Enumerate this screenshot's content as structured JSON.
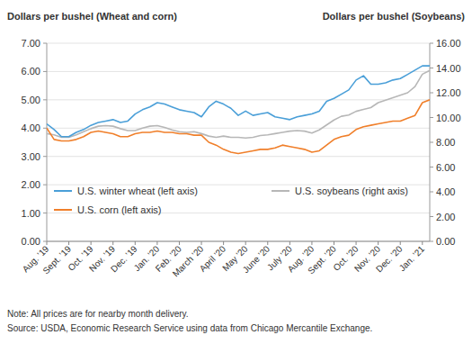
{
  "chart_data": {
    "type": "line",
    "y_label": "Dollars per bushel (Wheat and corn)",
    "y2_label": "Dollars per bushel (Soybeans)",
    "note": "Note: All prices are for nearby month delivery.",
    "source": "Source: USDA, Economic Research Service using data from Chicago Mercantile Exchange.",
    "categories": [
      "Aug. ’19",
      null,
      null,
      "Sept. ’19",
      null,
      null,
      "Oct. ’19",
      null,
      null,
      "Nov. ’19",
      null,
      null,
      "Dec. ’19",
      null,
      null,
      "Jan. ’20",
      null,
      null,
      "Feb. ’20",
      null,
      null,
      "March ’20",
      null,
      null,
      "April ’20",
      null,
      null,
      "May ’20",
      null,
      null,
      "June ’20",
      null,
      null,
      "July ’20",
      null,
      null,
      "Aug. ’20",
      null,
      null,
      "Sept. ’20",
      null,
      null,
      "Oct. ’20",
      null,
      null,
      "Nov. ’20",
      null,
      null,
      "Dec. ’20",
      null,
      null,
      "Jan. ’21",
      null
    ],
    "series": [
      {
        "name": "U.S. winter wheat (left axis)",
        "color": "#4a9fd8",
        "values": [
          4.15,
          3.95,
          3.7,
          3.7,
          3.85,
          3.95,
          4.1,
          4.2,
          4.25,
          4.3,
          4.2,
          4.25,
          4.5,
          4.65,
          4.75,
          4.9,
          4.85,
          4.75,
          4.65,
          4.6,
          4.55,
          4.4,
          4.75,
          4.95,
          4.85,
          4.7,
          4.45,
          4.6,
          4.45,
          4.5,
          4.55,
          4.4,
          4.35,
          4.3,
          4.4,
          4.45,
          4.5,
          4.6,
          4.95,
          5.05,
          5.2,
          5.35,
          5.7,
          5.85,
          5.55,
          5.55,
          5.6,
          5.7,
          5.75,
          5.9,
          6.05,
          6.2,
          6.2
        ]
      },
      {
        "name": "U.S. corn (left axis)",
        "color": "#f07f2a",
        "values": [
          4.0,
          3.6,
          3.55,
          3.55,
          3.6,
          3.7,
          3.85,
          3.9,
          3.85,
          3.8,
          3.7,
          3.7,
          3.8,
          3.85,
          3.85,
          3.9,
          3.85,
          3.85,
          3.8,
          3.8,
          3.75,
          3.75,
          3.5,
          3.4,
          3.25,
          3.15,
          3.1,
          3.15,
          3.2,
          3.25,
          3.25,
          3.3,
          3.4,
          3.35,
          3.3,
          3.25,
          3.15,
          3.2,
          3.4,
          3.6,
          3.7,
          3.75,
          3.95,
          4.05,
          4.1,
          4.15,
          4.2,
          4.25,
          4.25,
          4.35,
          4.45,
          4.9,
          5.0
        ]
      },
      {
        "name": "U.S. soybeans (right axis)",
        "color": "#b7b7b7",
        "axis": "y2",
        "values": [
          8.7,
          8.6,
          8.4,
          8.4,
          8.6,
          8.85,
          9.1,
          9.3,
          9.35,
          9.3,
          9.1,
          8.95,
          8.95,
          9.15,
          9.3,
          9.35,
          9.2,
          9.0,
          8.85,
          8.8,
          8.85,
          8.7,
          8.5,
          8.4,
          8.5,
          8.4,
          8.4,
          8.35,
          8.4,
          8.55,
          8.6,
          8.7,
          8.8,
          8.9,
          8.95,
          8.9,
          8.75,
          9.0,
          9.4,
          9.8,
          10.1,
          10.2,
          10.5,
          10.65,
          10.8,
          11.2,
          11.4,
          11.6,
          11.8,
          12.0,
          12.5,
          13.5,
          13.8
        ]
      }
    ],
    "ylim": [
      0,
      7
    ],
    "yticks": [
      {
        "value": 0,
        "label": "0.00"
      },
      {
        "value": 1,
        "label": "1.00"
      },
      {
        "value": 2,
        "label": "2.00"
      },
      {
        "value": 3,
        "label": "3.00"
      },
      {
        "value": 4,
        "label": "4.00"
      },
      {
        "value": 5,
        "label": "5.00"
      },
      {
        "value": 6,
        "label": "6.00"
      },
      {
        "value": 7,
        "label": "7.00"
      }
    ],
    "y2lim": [
      0,
      16
    ],
    "y2ticks": [
      {
        "value": 0,
        "label": "0.00"
      },
      {
        "value": 2,
        "label": "2.00"
      },
      {
        "value": 4,
        "label": "4.00"
      },
      {
        "value": 6,
        "label": "6.00"
      },
      {
        "value": 8,
        "label": "8.00"
      },
      {
        "value": 10,
        "label": "10.00"
      },
      {
        "value": 12,
        "label": "12.00"
      },
      {
        "value": 14,
        "label": "14.00"
      },
      {
        "value": 16,
        "label": "16.00"
      }
    ],
    "grid": true,
    "legend": "bottom"
  }
}
